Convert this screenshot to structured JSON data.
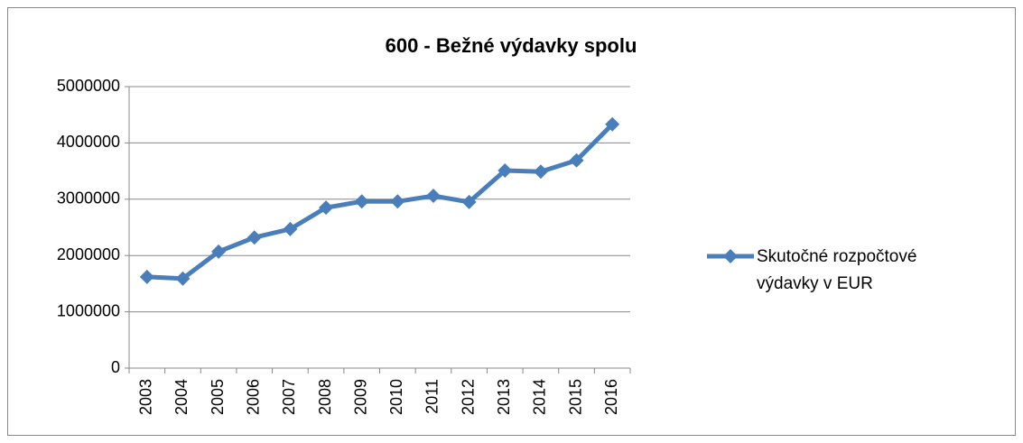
{
  "chart_data": {
    "type": "line",
    "title": "600 - Bežné výdavky spolu",
    "categories": [
      "2003",
      "2004",
      "2005",
      "2006",
      "2007",
      "2008",
      "2009",
      "2010",
      "2011",
      "2012",
      "2013",
      "2014",
      "2015",
      "2016"
    ],
    "series": [
      {
        "name": "Skutočné rozpočtové výdavky v EUR",
        "color": "#4a7ebb",
        "values": [
          1620000,
          1590000,
          2070000,
          2320000,
          2470000,
          2850000,
          2960000,
          2960000,
          3060000,
          2950000,
          3510000,
          3490000,
          3690000,
          4330000
        ]
      }
    ],
    "ylim": [
      0,
      5000000
    ],
    "yticks": [
      0,
      1000000,
      2000000,
      3000000,
      4000000,
      5000000
    ],
    "grid": true,
    "legend": "right"
  }
}
